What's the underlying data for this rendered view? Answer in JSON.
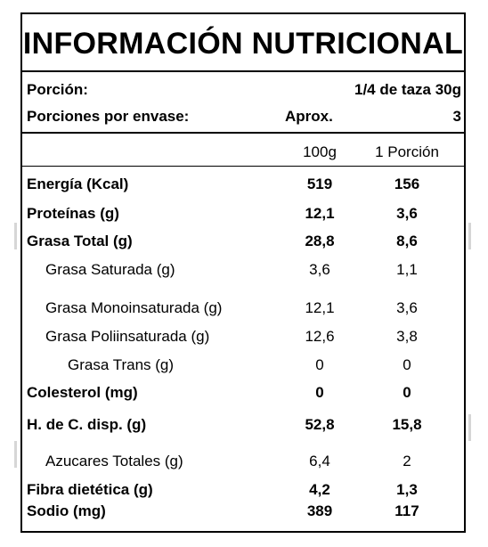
{
  "title": "INFORMACIÓN NUTRICIONAL",
  "serving": {
    "portion_label": "Porción:",
    "portion_value": "1/4 de taza  30g",
    "per_container_label": "Porciones por envase:",
    "per_container_approx": "Aprox.",
    "per_container_value": "3"
  },
  "columns": {
    "per100": "100g",
    "per_portion": "1 Porción"
  },
  "rows": [
    {
      "label": "Energía (Kcal)",
      "v100": "519",
      "vport": "156"
    },
    {
      "label": "Proteínas (g)",
      "v100": "12,1",
      "vport": "3,6"
    },
    {
      "label": "Grasa Total (g)",
      "v100": "28,8",
      "vport": "8,6"
    },
    {
      "label": "Grasa Saturada (g)",
      "v100": "3,6",
      "vport": "1,1"
    },
    {
      "label": "Grasa Monoinsaturada (g)",
      "v100": "12,1",
      "vport": "3,6"
    },
    {
      "label": "Grasa Poliinsaturada (g)",
      "v100": "12,6",
      "vport": "3,8"
    },
    {
      "label": "Grasa Trans (g)",
      "v100": "0",
      "vport": "0"
    },
    {
      "label": "Colesterol (mg)",
      "v100": "0",
      "vport": "0"
    },
    {
      "label": "H. de C. disp. (g)",
      "v100": "52,8",
      "vport": "15,8"
    },
    {
      "label": "Azucares Totales (g)",
      "v100": "6,4",
      "vport": "2"
    },
    {
      "label": "Fibra dietética (g)",
      "v100": "4,2",
      "vport": "1,3"
    },
    {
      "label": "Sodio (mg)",
      "v100": "389",
      "vport": "117"
    }
  ]
}
